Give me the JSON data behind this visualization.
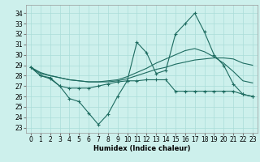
{
  "xlabel": "Humidex (Indice chaleur)",
  "xlim": [
    -0.5,
    23.5
  ],
  "ylim": [
    22.5,
    34.8
  ],
  "yticks": [
    23,
    24,
    25,
    26,
    27,
    28,
    29,
    30,
    31,
    32,
    33,
    34
  ],
  "xticks": [
    0,
    1,
    2,
    3,
    4,
    5,
    6,
    7,
    8,
    9,
    10,
    11,
    12,
    13,
    14,
    15,
    16,
    17,
    18,
    19,
    20,
    21,
    22,
    23
  ],
  "bg_color": "#cdf0ec",
  "grid_color": "#aaddd8",
  "line_color": "#1d6b60",
  "lines": [
    {
      "x": [
        0,
        1,
        2,
        3,
        4,
        5,
        6,
        7,
        8,
        9,
        10,
        11,
        12,
        13,
        14,
        15,
        16,
        17,
        18,
        19,
        20,
        21,
        22,
        23
      ],
      "y": [
        28.8,
        28.0,
        27.7,
        27.0,
        26.8,
        26.8,
        26.8,
        27.0,
        27.2,
        27.4,
        27.5,
        27.5,
        27.6,
        27.6,
        27.6,
        26.5,
        26.5,
        26.5,
        26.5,
        26.5,
        26.5,
        26.5,
        26.2,
        26.0
      ],
      "marker": true
    },
    {
      "x": [
        0,
        1,
        2,
        3,
        4,
        5,
        6,
        7,
        8,
        9,
        10,
        11,
        12,
        13,
        14,
        15,
        16,
        17,
        18,
        19,
        20,
        21,
        22,
        23
      ],
      "y": [
        28.8,
        28.2,
        28.0,
        27.8,
        27.6,
        27.5,
        27.4,
        27.4,
        27.4,
        27.5,
        27.7,
        28.0,
        28.3,
        28.6,
        28.8,
        29.1,
        29.3,
        29.5,
        29.6,
        29.7,
        29.7,
        29.6,
        29.2,
        29.0
      ],
      "marker": false
    },
    {
      "x": [
        0,
        1,
        2,
        3,
        4,
        5,
        6,
        7,
        8,
        9,
        10,
        11,
        12,
        13,
        14,
        15,
        16,
        17,
        18,
        19,
        20,
        21,
        22,
        23
      ],
      "y": [
        28.8,
        28.3,
        28.0,
        27.8,
        27.6,
        27.5,
        27.4,
        27.4,
        27.5,
        27.6,
        27.9,
        28.3,
        28.7,
        29.2,
        29.6,
        30.0,
        30.4,
        30.6,
        30.3,
        29.8,
        29.2,
        28.4,
        27.5,
        27.3
      ],
      "marker": false
    },
    {
      "x": [
        0,
        1,
        2,
        3,
        4,
        5,
        6,
        7,
        8,
        9,
        10,
        11,
        12,
        13,
        14,
        15,
        16,
        17,
        18,
        19,
        20,
        21,
        22,
        23
      ],
      "y": [
        28.8,
        28.0,
        27.8,
        27.0,
        25.8,
        25.5,
        24.4,
        23.3,
        24.3,
        26.0,
        27.5,
        31.2,
        30.2,
        28.2,
        28.5,
        32.0,
        33.0,
        34.0,
        32.2,
        30.0,
        29.0,
        27.2,
        26.2,
        26.0
      ],
      "marker": true
    }
  ]
}
